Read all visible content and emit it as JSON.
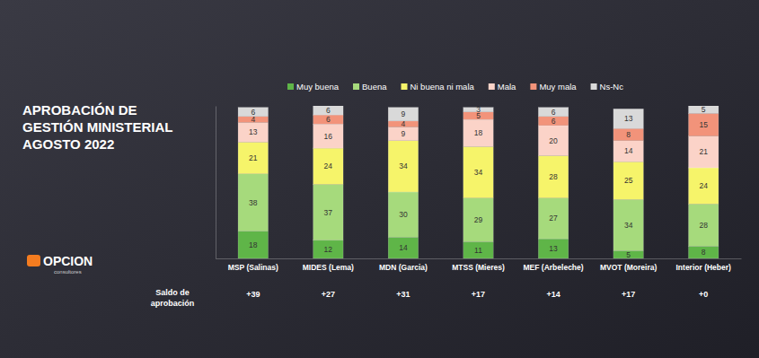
{
  "chart_data": {
    "type": "bar",
    "title": "APROBACIÓN DE\nGESTIÓN MINISTERIAL\nAGOSTO 2022",
    "logo": "OPCION",
    "logo_subtitle": "consultores",
    "categories": [
      "MSP (Salinas)",
      "MIDES (Lema)",
      "MDN (Garcia)",
      "MTSS (Mieres)",
      "MEF (Arbeleche)",
      "MVOT (Moreira)",
      "Interior (Heber)"
    ],
    "series": [
      {
        "name": "Muy buena",
        "color": "#5fb548",
        "values": [
          18,
          12,
          14,
          11,
          13,
          5,
          8
        ]
      },
      {
        "name": "Buena",
        "color": "#a6da7c",
        "values": [
          38,
          37,
          30,
          29,
          27,
          34,
          28
        ]
      },
      {
        "name": "Ni buena ni mala",
        "color": "#f6f46a",
        "values": [
          21,
          24,
          34,
          34,
          28,
          25,
          24
        ]
      },
      {
        "name": "Mala",
        "color": "#fbd3c8",
        "values": [
          13,
          16,
          9,
          18,
          20,
          14,
          21
        ]
      },
      {
        "name": "Muy mala",
        "color": "#f2937a",
        "values": [
          4,
          6,
          4,
          5,
          6,
          8,
          15
        ]
      },
      {
        "name": "Ns-Nc",
        "color": "#d9d9d9",
        "values": [
          6,
          6,
          9,
          3,
          6,
          13,
          5
        ]
      }
    ],
    "balance": {
      "label": "Saldo de\naprobación",
      "values": [
        39,
        27,
        31,
        17,
        14,
        17,
        0
      ],
      "value_labels": [
        "+39",
        "+27",
        "+31",
        "+17",
        "+14",
        "+17",
        "+0"
      ]
    },
    "stacked": true,
    "data_labels": true,
    "legend": "top",
    "ylim": [
      0,
      101
    ],
    "tick_labels": "x"
  }
}
